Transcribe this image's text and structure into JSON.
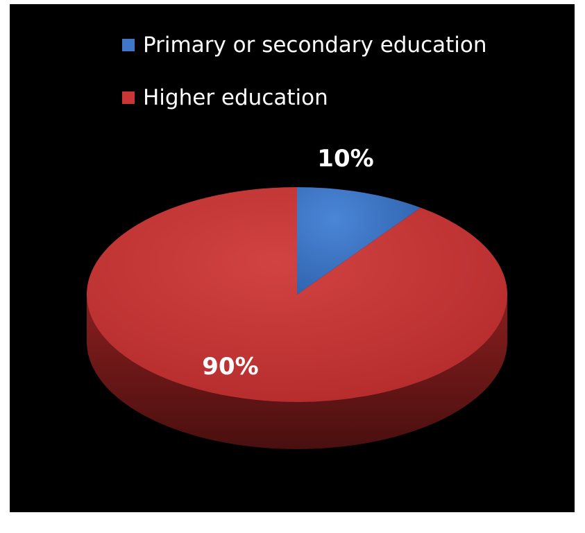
{
  "chart_data": {
    "type": "pie",
    "style": "3d",
    "categories": [
      "Primary or secondary education",
      "Higher education"
    ],
    "values": [
      10,
      90
    ],
    "data_labels": [
      "10%",
      "90%"
    ],
    "colors": [
      "#3f78c8",
      "#c93636"
    ],
    "legend": {
      "placement": "top",
      "entries": [
        "Primary or secondary education",
        "Higher education"
      ]
    },
    "background": "#000000"
  }
}
